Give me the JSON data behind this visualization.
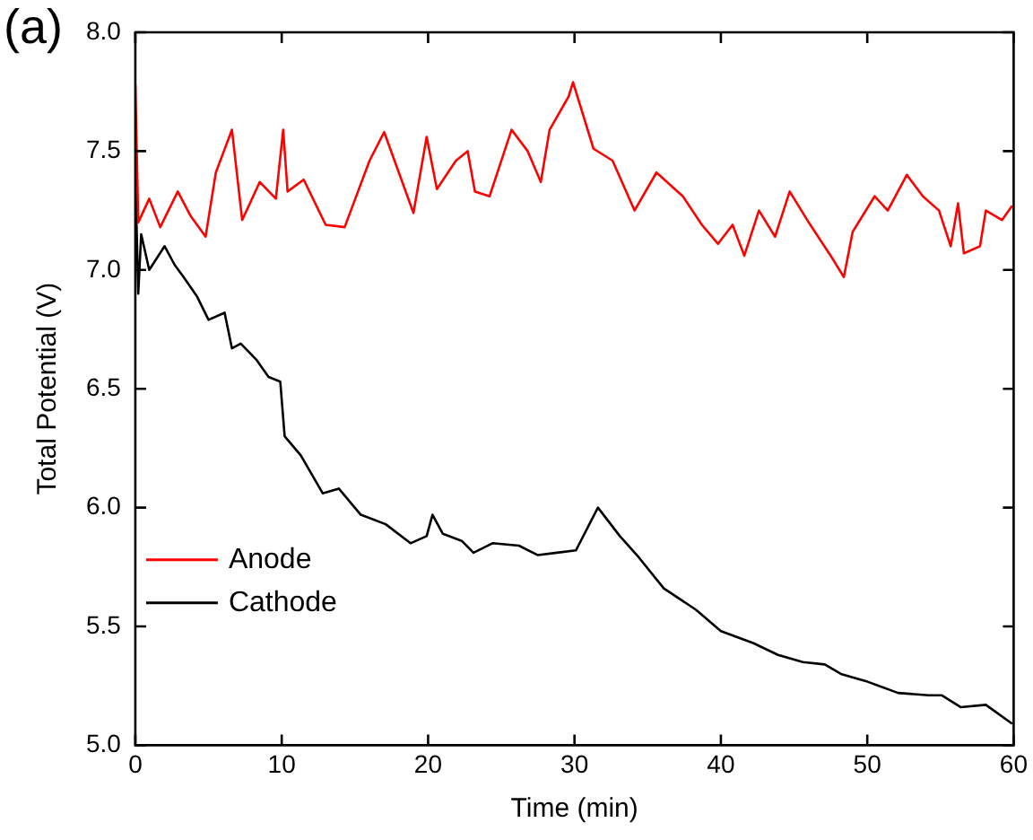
{
  "chart_data": {
    "type": "line",
    "xlabel": "Time (min)",
    "ylabel": "Total Potential (V)",
    "annotations": [
      "(a)"
    ],
    "xlim": [
      0,
      60
    ],
    "xticks": [
      0,
      10,
      20,
      30,
      40,
      50,
      60
    ],
    "ylim": [
      5.0,
      8.0
    ],
    "yticks": [
      {
        "value": 5.0,
        "label": "5.0"
      },
      {
        "value": 5.5,
        "label": "5.5"
      },
      {
        "value": 6.0,
        "label": "6.0"
      },
      {
        "value": 6.5,
        "label": "6.5"
      },
      {
        "value": 7.0,
        "label": "7.0"
      },
      {
        "value": 7.5,
        "label": "7.5"
      },
      {
        "value": 8.0,
        "label": "8.0"
      }
    ],
    "grid": false,
    "legend": "center left",
    "marker": "none",
    "line_style": "solid",
    "series": [
      {
        "name": "Anode",
        "color": "#ff0000",
        "x": [
          0,
          0.2,
          0.95,
          1.7,
          2.9,
          3.75,
          4.8,
          5.5,
          6.6,
          7.3,
          8.5,
          9.6,
          10.1,
          10.4,
          11.5,
          13.0,
          14.3,
          16.0,
          17.0,
          18.0,
          19.0,
          19.9,
          20.6,
          21.9,
          22.7,
          23.2,
          24.2,
          25.7,
          26.8,
          27.7,
          28.3,
          29.6,
          29.9,
          31.3,
          32.6,
          34.1,
          35.6,
          37.4,
          38.7,
          39.8,
          40.8,
          41.6,
          42.6,
          43.7,
          44.7,
          46.0,
          47.5,
          48.4,
          49.0,
          50.5,
          51.4,
          52.7,
          53.8,
          54.9,
          55.7,
          56.2,
          56.6,
          57.7,
          58.1,
          59.2,
          59.9
        ],
        "values": [
          7.78,
          7.2,
          7.3,
          7.18,
          7.33,
          7.23,
          7.14,
          7.41,
          7.59,
          7.21,
          7.37,
          7.3,
          7.59,
          7.33,
          7.38,
          7.19,
          7.18,
          7.46,
          7.58,
          7.41,
          7.24,
          7.56,
          7.34,
          7.46,
          7.5,
          7.33,
          7.31,
          7.59,
          7.5,
          7.37,
          7.59,
          7.73,
          7.79,
          7.51,
          7.46,
          7.25,
          7.41,
          7.31,
          7.19,
          7.11,
          7.19,
          7.06,
          7.25,
          7.14,
          7.33,
          7.2,
          7.06,
          6.97,
          7.16,
          7.31,
          7.25,
          7.4,
          7.31,
          7.25,
          7.1,
          7.28,
          7.07,
          7.1,
          7.25,
          7.21,
          7.27
        ]
      },
      {
        "name": "Cathode",
        "color": "#000000",
        "x": [
          0,
          0.2,
          0.4,
          0.95,
          2.0,
          2.7,
          3.3,
          4.2,
          5.0,
          6.1,
          6.6,
          7.2,
          8.3,
          9.1,
          9.9,
          10.2,
          11.3,
          12.8,
          13.9,
          15.4,
          17.1,
          18.8,
          19.9,
          20.3,
          21.0,
          22.3,
          23.1,
          24.4,
          26.2,
          27.5,
          28.8,
          30.1,
          31.6,
          33.1,
          34.4,
          36.1,
          38.3,
          40.0,
          42.2,
          43.9,
          45.6,
          47.1,
          48.2,
          49.9,
          52.1,
          54.2,
          55.1,
          56.4,
          58.1,
          59.9
        ],
        "values": [
          7.4,
          6.9,
          7.15,
          7.0,
          7.1,
          7.02,
          6.97,
          6.89,
          6.79,
          6.82,
          6.67,
          6.69,
          6.62,
          6.55,
          6.53,
          6.3,
          6.22,
          6.06,
          6.08,
          5.97,
          5.93,
          5.85,
          5.88,
          5.97,
          5.89,
          5.86,
          5.81,
          5.85,
          5.84,
          5.8,
          5.81,
          5.82,
          6.0,
          5.88,
          5.79,
          5.66,
          5.57,
          5.48,
          5.43,
          5.38,
          5.35,
          5.34,
          5.3,
          5.27,
          5.22,
          5.21,
          5.21,
          5.16,
          5.17,
          5.09
        ]
      }
    ]
  }
}
